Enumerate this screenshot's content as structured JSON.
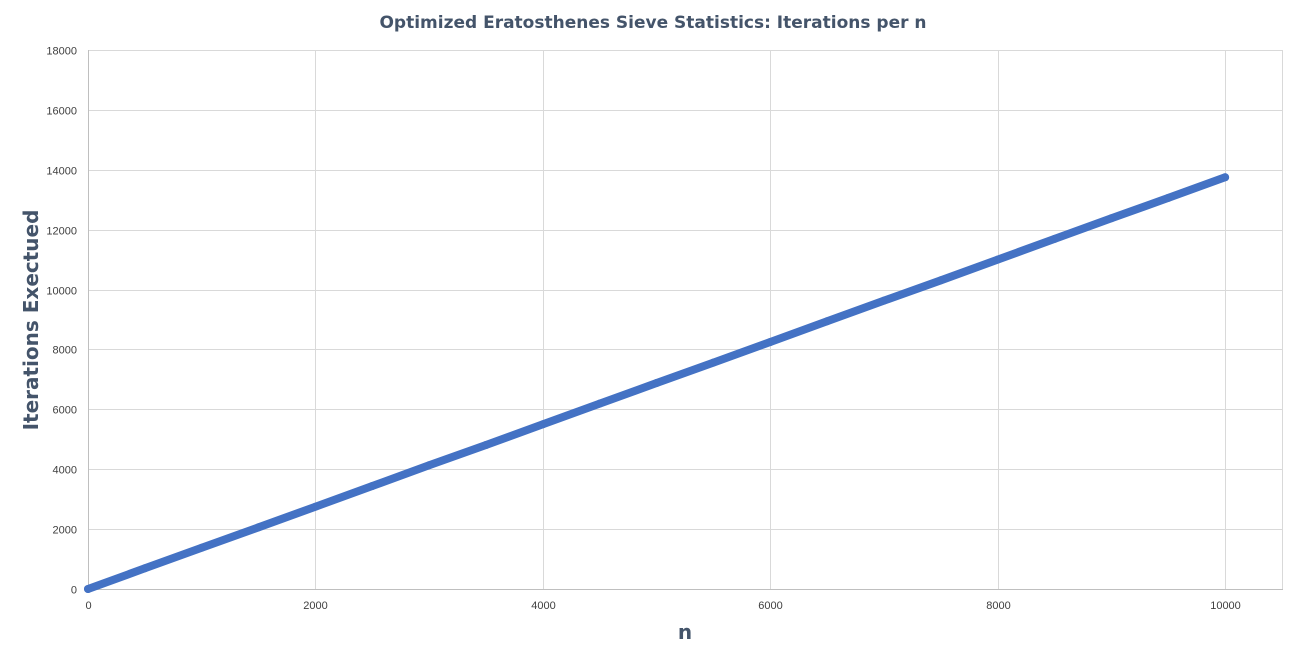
{
  "chart_data": {
    "type": "scatter",
    "title": "Optimized Eratosthenes Sieve Statistics: Iterations per n",
    "xlabel": "n",
    "ylabel": "Iterations Exectued",
    "xlim": [
      0,
      10500
    ],
    "ylim": [
      0,
      18000
    ],
    "xticks": [
      0,
      2000,
      4000,
      6000,
      8000,
      10000
    ],
    "yticks": [
      0,
      2000,
      4000,
      6000,
      8000,
      10000,
      12000,
      14000,
      16000,
      18000
    ],
    "grid": true,
    "legend": "none",
    "series": [
      {
        "color": "#4472c4",
        "x": [
          0,
          500,
          1000,
          1500,
          2000,
          2500,
          3000,
          3500,
          4000,
          4500,
          5000,
          5500,
          6000,
          6500,
          7000,
          7500,
          8000,
          8500,
          9000,
          9500,
          10000
        ],
        "y": [
          0,
          690,
          1380,
          2060,
          2750,
          3440,
          4130,
          4810,
          5500,
          6190,
          6880,
          7560,
          8250,
          8940,
          9630,
          10310,
          11000,
          11690,
          12380,
          13060,
          13750
        ]
      }
    ]
  }
}
